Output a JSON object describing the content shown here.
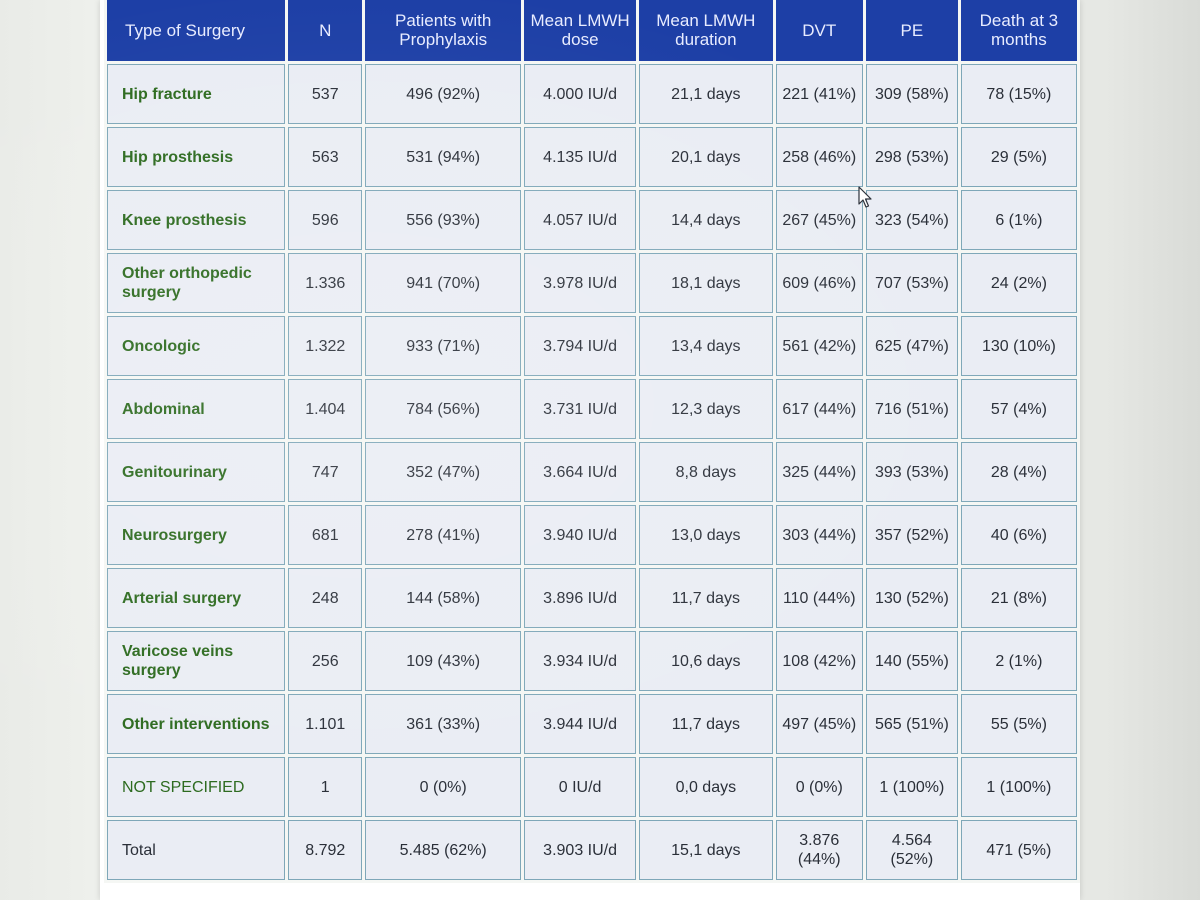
{
  "table": {
    "headers": [
      "Type of Surgery",
      "N",
      "Patients with Prophylaxis",
      "Mean LMWH dose",
      "Mean LMWH duration",
      "DVT",
      "PE",
      "Death at 3 months"
    ],
    "rows": [
      [
        "Hip fracture",
        "537",
        "496 (92%)",
        "4.000 IU/d",
        "21,1 days",
        "221 (41%)",
        "309 (58%)",
        "78 (15%)"
      ],
      [
        "Hip prosthesis",
        "563",
        "531 (94%)",
        "4.135 IU/d",
        "20,1 days",
        "258 (46%)",
        "298 (53%)",
        "29 (5%)"
      ],
      [
        "Knee prosthesis",
        "596",
        "556 (93%)",
        "4.057 IU/d",
        "14,4 days",
        "267 (45%)",
        "323 (54%)",
        "6 (1%)"
      ],
      [
        "Other orthopedic surgery",
        "1.336",
        "941 (70%)",
        "3.978 IU/d",
        "18,1 days",
        "609 (46%)",
        "707 (53%)",
        "24 (2%)"
      ],
      [
        "Oncologic",
        "1.322",
        "933 (71%)",
        "3.794 IU/d",
        "13,4 days",
        "561 (42%)",
        "625 (47%)",
        "130 (10%)"
      ],
      [
        "Abdominal",
        "1.404",
        "784 (56%)",
        "3.731 IU/d",
        "12,3 days",
        "617 (44%)",
        "716 (51%)",
        "57 (4%)"
      ],
      [
        "Genitourinary",
        "747",
        "352 (47%)",
        "3.664 IU/d",
        "8,8 days",
        "325 (44%)",
        "393 (53%)",
        "28 (4%)"
      ],
      [
        "Neurosurgery",
        "681",
        "278 (41%)",
        "3.940 IU/d",
        "13,0 days",
        "303 (44%)",
        "357 (52%)",
        "40 (6%)"
      ],
      [
        "Arterial surgery",
        "248",
        "144 (58%)",
        "3.896 IU/d",
        "11,7 days",
        "110 (44%)",
        "130 (52%)",
        "21 (8%)"
      ],
      [
        "Varicose veins surgery",
        "256",
        "109 (43%)",
        "3.934 IU/d",
        "10,6 days",
        "108 (42%)",
        "140 (55%)",
        "2 (1%)"
      ],
      [
        "Other interventions",
        "1.101",
        "361 (33%)",
        "3.944 IU/d",
        "11,7 days",
        "497 (45%)",
        "565 (51%)",
        "55 (5%)"
      ],
      [
        "NOT SPECIFIED",
        "1",
        "0 (0%)",
        "0 IU/d",
        "0,0 days",
        "0 (0%)",
        "1 (100%)",
        "1 (100%)"
      ],
      [
        "Total",
        "8.792",
        "5.485 (62%)",
        "3.903 IU/d",
        "15,1 days",
        "3.876 (44%)",
        "4.564 (52%)",
        "471 (5%)"
      ]
    ]
  },
  "colors": {
    "header_bg": "#1d3fa6",
    "header_text": "#e8ecff",
    "cell_bg": "#eaedf4",
    "cell_border": "#7ea7b8",
    "type_text": "#2c6a1e"
  },
  "icons": {
    "cursor": "mouse-pointer-icon"
  }
}
